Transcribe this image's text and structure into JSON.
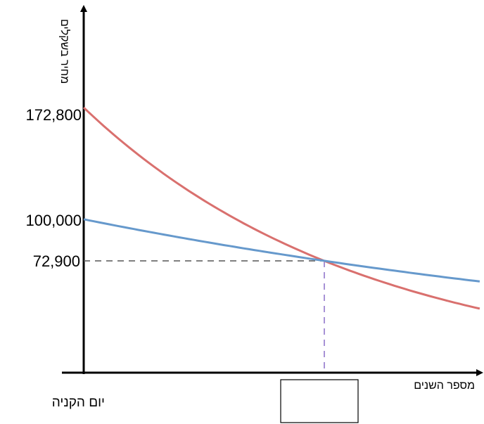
{
  "chart_data": {
    "type": "line",
    "ylabel": "מחיר בשקלים",
    "xlabel": "מספר השנים",
    "origin_label": "יום הקניה",
    "answer_box": "",
    "y_ticks": [
      {
        "value": 172800,
        "label": "172,800"
      },
      {
        "value": 100000,
        "label": "100,000"
      },
      {
        "value": 72900,
        "label": "72,900"
      }
    ],
    "ylim": [
      0,
      172800
    ],
    "xlim": [
      0,
      10
    ],
    "intersection": {
      "x": 6,
      "y": 72900,
      "label": "72,900"
    },
    "series": [
      {
        "color": "#d9706e",
        "start": 172800,
        "factor_per_year": 0.866,
        "x_end": 10
      },
      {
        "color": "#6699cc",
        "start": 100000,
        "factor_per_year": 0.9487,
        "x_end": 10
      }
    ],
    "grid": false
  }
}
